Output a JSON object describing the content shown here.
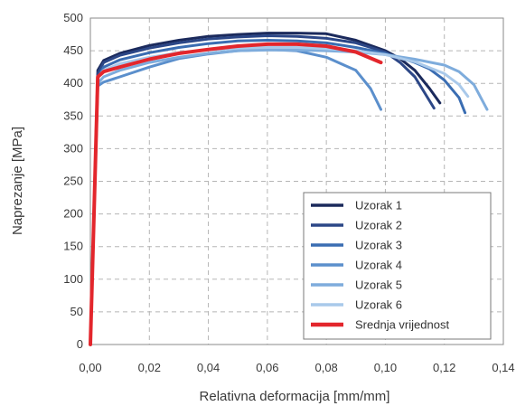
{
  "chart_data": {
    "type": "line",
    "title": "",
    "xlabel": "Relativna deformacija [mm/mm]",
    "ylabel": "Naprezanje [MPa]",
    "xlim": [
      0,
      0.14
    ],
    "ylim": [
      0,
      500
    ],
    "x_ticks": [
      "0,00",
      "0,02",
      "0,04",
      "0,06",
      "0,08",
      "0,10",
      "0,12",
      "0,14"
    ],
    "y_ticks": [
      "0",
      "50",
      "100",
      "150",
      "200",
      "250",
      "300",
      "350",
      "400",
      "450",
      "500"
    ],
    "grid": true,
    "legend_position": "bottom-right",
    "series": [
      {
        "name": "Uzorak 1",
        "color": "#1b2a5c",
        "width": 3,
        "x": [
          0,
          0.0025,
          0.0045,
          0.01,
          0.02,
          0.03,
          0.04,
          0.05,
          0.06,
          0.07,
          0.08,
          0.09,
          0.1,
          0.105,
          0.11,
          0.115,
          0.1185
        ],
        "y": [
          0,
          420,
          435,
          446,
          458,
          466,
          472,
          475,
          477,
          477,
          476,
          466,
          450,
          438,
          420,
          392,
          370
        ]
      },
      {
        "name": "Uzorak 2",
        "color": "#2c4787",
        "width": 3,
        "x": [
          0,
          0.0025,
          0.0045,
          0.01,
          0.02,
          0.03,
          0.04,
          0.05,
          0.06,
          0.07,
          0.08,
          0.09,
          0.1,
          0.105,
          0.11,
          0.1165
        ],
        "y": [
          0,
          415,
          432,
          443,
          454,
          462,
          468,
          471,
          473,
          472,
          469,
          462,
          448,
          432,
          410,
          362
        ]
      },
      {
        "name": "Uzorak 3",
        "color": "#3a6db2",
        "width": 3,
        "x": [
          0,
          0.0025,
          0.0045,
          0.01,
          0.02,
          0.03,
          0.04,
          0.05,
          0.06,
          0.07,
          0.08,
          0.09,
          0.1,
          0.11,
          0.115,
          0.12,
          0.125,
          0.127
        ],
        "y": [
          0,
          408,
          425,
          436,
          447,
          455,
          461,
          465,
          466,
          465,
          462,
          455,
          446,
          432,
          422,
          405,
          378,
          355
        ]
      },
      {
        "name": "Uzorak 4",
        "color": "#5b8fcc",
        "width": 3,
        "x": [
          0,
          0.0025,
          0.0045,
          0.01,
          0.02,
          0.03,
          0.04,
          0.05,
          0.06,
          0.07,
          0.08,
          0.09,
          0.095,
          0.0985
        ],
        "y": [
          0,
          396,
          402,
          410,
          425,
          438,
          445,
          450,
          452,
          450,
          440,
          420,
          392,
          360
        ]
      },
      {
        "name": "Uzorak 5",
        "color": "#7eacdc",
        "width": 3,
        "x": [
          0,
          0.0025,
          0.0045,
          0.01,
          0.02,
          0.03,
          0.04,
          0.05,
          0.06,
          0.07,
          0.08,
          0.09,
          0.1,
          0.11,
          0.12,
          0.125,
          0.13,
          0.1345
        ],
        "y": [
          0,
          400,
          410,
          420,
          432,
          440,
          446,
          450,
          451,
          451,
          450,
          448,
          444,
          437,
          428,
          418,
          398,
          360
        ]
      },
      {
        "name": "Uzorak 6",
        "color": "#a9c9ea",
        "width": 3,
        "x": [
          0,
          0.0025,
          0.0045,
          0.01,
          0.02,
          0.03,
          0.04,
          0.05,
          0.06,
          0.07,
          0.08,
          0.09,
          0.1,
          0.11,
          0.12,
          0.125,
          0.128
        ],
        "y": [
          0,
          410,
          420,
          430,
          440,
          447,
          451,
          454,
          455,
          455,
          453,
          450,
          444,
          433,
          415,
          398,
          380
        ]
      },
      {
        "name": "Srednja vrijednost",
        "color": "#e3262c",
        "width": 4,
        "x": [
          0,
          0.0025,
          0.0045,
          0.01,
          0.02,
          0.03,
          0.04,
          0.05,
          0.06,
          0.07,
          0.08,
          0.09,
          0.0985
        ],
        "y": [
          0,
          410,
          418,
          425,
          437,
          446,
          452,
          457,
          460,
          460,
          457,
          448,
          432
        ]
      }
    ]
  }
}
